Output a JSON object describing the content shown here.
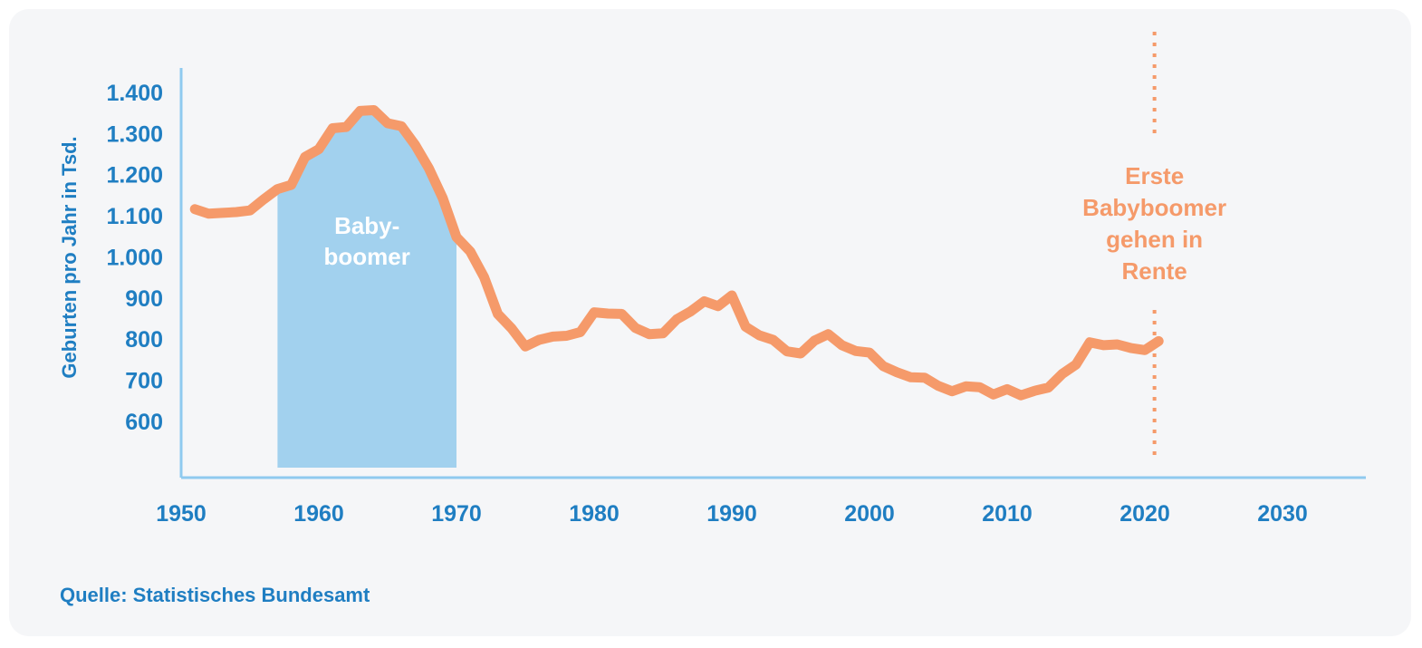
{
  "colors": {
    "axis": "#1f7ec2",
    "axis_line": "#8fcaef",
    "line": "#f59a6a",
    "highlight": "#a2d1ee",
    "highlight_text": "#ffffff",
    "annotation": "#f59a6a",
    "background": "#f5f6f8"
  },
  "source": "Quelle: Statistisches Bundesamt",
  "chart_data": {
    "type": "line",
    "ylabel": "Geburten pro Jahr in Tsd.",
    "xlim": [
      1950,
      2036
    ],
    "ylim": [
      500,
      1450
    ],
    "x_ticks": [
      1950,
      1960,
      1970,
      1980,
      1990,
      2000,
      2010,
      2020,
      2030
    ],
    "x_tick_labels": [
      "1950",
      "1960",
      "1970",
      "1980",
      "1990",
      "2000",
      "2010",
      "2020",
      "2030"
    ],
    "y_ticks": [
      600,
      700,
      800,
      900,
      1000,
      1100,
      1200,
      1300,
      1400
    ],
    "y_tick_labels": [
      "600",
      "700",
      "800",
      "900",
      "1.000",
      "1.100",
      "1.200",
      "1.300",
      "1.400"
    ],
    "series": [
      {
        "x": [
          1951,
          1952,
          1953,
          1954,
          1955,
          1956,
          1957,
          1958,
          1959,
          1960,
          1961,
          1962,
          1963,
          1964,
          1965,
          1966,
          1967,
          1968,
          1969,
          1970,
          1971,
          1972,
          1973,
          1974,
          1975,
          1976,
          1977,
          1978,
          1979,
          1980,
          1981,
          1982,
          1983,
          1984,
          1985,
          1986,
          1987,
          1988,
          1989,
          1990,
          1991,
          1992,
          1993,
          1994,
          1995,
          1996,
          1997,
          1998,
          1999,
          2000,
          2001,
          2002,
          2003,
          2004,
          2005,
          2006,
          2007,
          2008,
          2009,
          2010,
          2011,
          2012,
          2013,
          2014,
          2015,
          2016,
          2017,
          2018,
          2019,
          2020,
          2021
        ],
        "y": [
          1116,
          1105,
          1107,
          1109,
          1113,
          1140,
          1165,
          1175,
          1243,
          1262,
          1313,
          1316,
          1355,
          1357,
          1325,
          1318,
          1272,
          1215,
          1143,
          1048,
          1013,
          951,
          861,
          826,
          782,
          798,
          806,
          808,
          817,
          865,
          862,
          861,
          827,
          812,
          814,
          848,
          867,
          892,
          880,
          906,
          830,
          809,
          798,
          770,
          765,
          796,
          812,
          785,
          771,
          767,
          734,
          719,
          707,
          706,
          686,
          673,
          685,
          683,
          665,
          678,
          663,
          674,
          682,
          715,
          738,
          792,
          785,
          787,
          778,
          773,
          795
        ]
      }
    ],
    "highlight_range": [
      1957,
      1970
    ],
    "highlight_label": [
      "Baby-",
      "boomer"
    ],
    "vline_x": 2020.7,
    "vline_label": [
      "Erste",
      "Babyboomer",
      "gehen in",
      "Rente"
    ]
  }
}
